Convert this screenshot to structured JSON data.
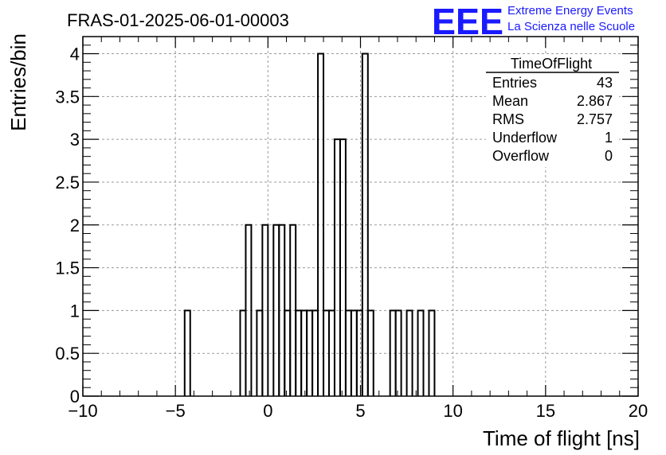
{
  "chart_data": {
    "type": "bar",
    "title": "FRAS-01-2025-06-01-00003",
    "xlabel": "Time of flight [ns]",
    "ylabel": "Entries/bin",
    "xlim": [
      -10,
      20
    ],
    "ylim": [
      0,
      4.2
    ],
    "x_ticks": [
      -10,
      -5,
      0,
      5,
      10,
      15,
      20
    ],
    "y_ticks": [
      0,
      0.5,
      1,
      1.5,
      2,
      2.5,
      3,
      3.5,
      4
    ],
    "x_tick_labels": [
      "−10",
      "−5",
      "0",
      "5",
      "10",
      "15",
      "20"
    ],
    "y_tick_labels": [
      "0",
      "0.5",
      "1",
      "1.5",
      "2",
      "2.5",
      "3",
      "3.5",
      "4"
    ],
    "grid": true,
    "bin_width": 0.3,
    "bins": [
      {
        "x0": -4.5,
        "x1": -4.2,
        "count": 1
      },
      {
        "x0": -1.5,
        "x1": -1.2,
        "count": 1
      },
      {
        "x0": -1.2,
        "x1": -0.9,
        "count": 2
      },
      {
        "x0": -0.6,
        "x1": -0.3,
        "count": 1
      },
      {
        "x0": -0.3,
        "x1": 0.0,
        "count": 2
      },
      {
        "x0": 0.3,
        "x1": 0.6,
        "count": 2
      },
      {
        "x0": 0.6,
        "x1": 0.9,
        "count": 2
      },
      {
        "x0": 0.9,
        "x1": 1.2,
        "count": 1
      },
      {
        "x0": 1.2,
        "x1": 1.5,
        "count": 2
      },
      {
        "x0": 1.5,
        "x1": 1.8,
        "count": 1
      },
      {
        "x0": 1.8,
        "x1": 2.1,
        "count": 1
      },
      {
        "x0": 2.1,
        "x1": 2.4,
        "count": 1
      },
      {
        "x0": 2.4,
        "x1": 2.7,
        "count": 1
      },
      {
        "x0": 2.7,
        "x1": 3.0,
        "count": 4
      },
      {
        "x0": 3.0,
        "x1": 3.3,
        "count": 1
      },
      {
        "x0": 3.3,
        "x1": 3.6,
        "count": 1
      },
      {
        "x0": 3.6,
        "x1": 3.9,
        "count": 3
      },
      {
        "x0": 3.9,
        "x1": 4.2,
        "count": 3
      },
      {
        "x0": 4.2,
        "x1": 4.5,
        "count": 1
      },
      {
        "x0": 4.5,
        "x1": 4.8,
        "count": 1
      },
      {
        "x0": 4.8,
        "x1": 5.1,
        "count": 1
      },
      {
        "x0": 5.1,
        "x1": 5.4,
        "count": 4
      },
      {
        "x0": 5.4,
        "x1": 5.7,
        "count": 1
      },
      {
        "x0": 6.6,
        "x1": 6.9,
        "count": 1
      },
      {
        "x0": 6.9,
        "x1": 7.2,
        "count": 1
      },
      {
        "x0": 7.5,
        "x1": 7.8,
        "count": 1
      },
      {
        "x0": 8.1,
        "x1": 8.4,
        "count": 1
      },
      {
        "x0": 8.7,
        "x1": 9.0,
        "count": 1
      }
    ],
    "stats_box": {
      "name": "TimeOfFlight",
      "rows": [
        {
          "label": "Entries",
          "value": "43"
        },
        {
          "label": "Mean",
          "value": "2.867"
        },
        {
          "label": "RMS",
          "value": "2.757"
        },
        {
          "label": "Underflow",
          "value": "1"
        },
        {
          "label": "Overflow",
          "value": "0"
        }
      ]
    }
  },
  "logo": {
    "mark": "EEE",
    "line1": "Extreme Energy Events",
    "line2": "La Scienza nelle Scuole"
  },
  "colors": {
    "line": "#000000",
    "grid": "#9a9a9a",
    "logo": "#1a1aff",
    "background": "#ffffff"
  }
}
